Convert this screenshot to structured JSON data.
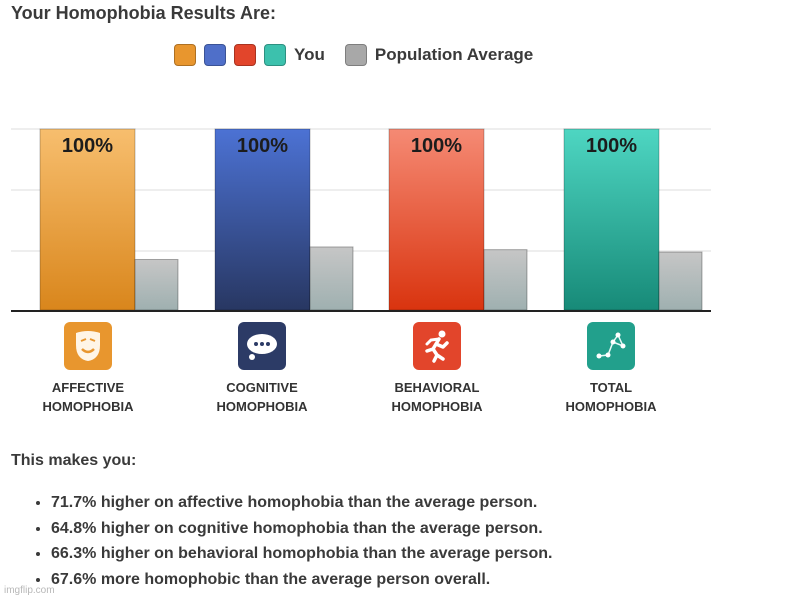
{
  "title": "Your Homophobia Results Are:",
  "legend": {
    "you_label": "You",
    "avg_label": "Population Average",
    "you_colors": [
      "#e8962e",
      "#4f6fc9",
      "#e2452b",
      "#3cc1ad"
    ],
    "avg_color": "#a8a8a8"
  },
  "chart_data": {
    "type": "bar",
    "categories": [
      "AFFECTIVE HOMOPHOBIA",
      "COGNITIVE HOMOPHOBIA",
      "BEHAVIORAL HOMOPHOBIA",
      "TOTAL HOMOPHOBIA"
    ],
    "series": [
      {
        "name": "You",
        "values": [
          100,
          100,
          100,
          100
        ],
        "labels": [
          "100%",
          "100%",
          "100%",
          "100%"
        ]
      },
      {
        "name": "Population Average",
        "values": [
          28.3,
          35.2,
          33.7,
          32.4
        ]
      }
    ],
    "ylim": [
      0,
      100
    ],
    "grid": true,
    "legend_position": "top",
    "colors": {
      "you_top": [
        "#f7be6e",
        "#4c72d4",
        "#f58a74",
        "#4ed6c2"
      ],
      "you_bottom": [
        "#d9861c",
        "#283762",
        "#d9340f",
        "#178a78"
      ],
      "avg_top": "#c6c6c6",
      "avg_bottom": "#9fb0b0"
    }
  },
  "categories": [
    {
      "name": "AFFECTIVE\nHOMOPHOBIA",
      "icon": "theater-mask-icon",
      "icon_color": "#e8962e"
    },
    {
      "name": "COGNITIVE\nHOMOPHOBIA",
      "icon": "thought-bubble-icon",
      "icon_color": "#2c3b66"
    },
    {
      "name": "BEHAVIORAL\nHOMOPHOBIA",
      "icon": "running-person-icon",
      "icon_color": "#e2452b"
    },
    {
      "name": "TOTAL\nHOMOPHOBIA",
      "icon": "constellation-icon",
      "icon_color": "#22a08c"
    }
  ],
  "makes_you": "This makes you:",
  "results": [
    "71.7% higher on affective homophobia than the average person.",
    "64.8% higher on cognitive homophobia than the average person.",
    "66.3% higher on behavioral homophobia than the average person.",
    "67.6% more homophobic than the average person overall."
  ],
  "watermark": "imgflip.com"
}
